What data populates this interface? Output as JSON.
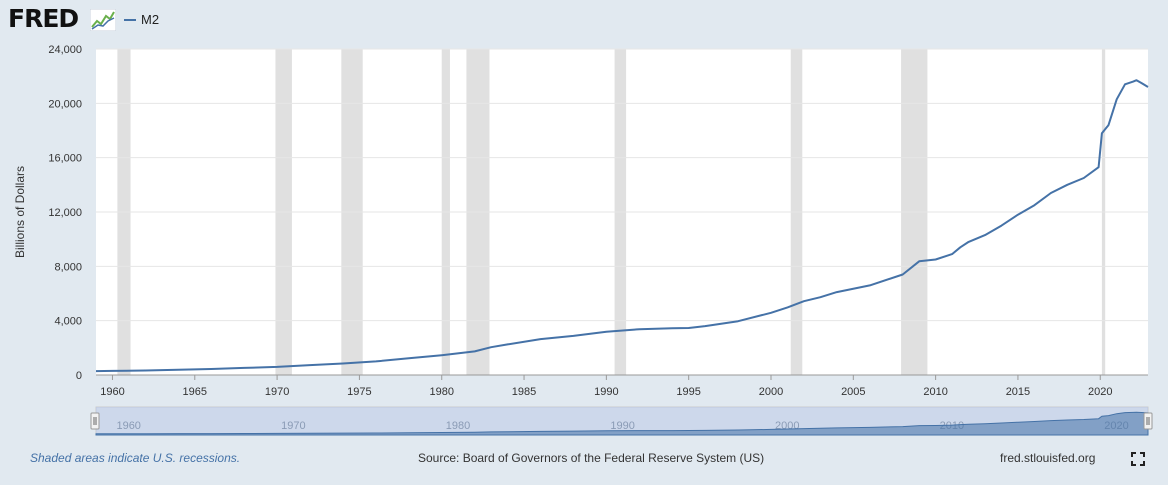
{
  "header": {
    "logo_text": "FRED",
    "logo_icon": "fred-line-graph-icon"
  },
  "legend": {
    "items": [
      {
        "label": "M2",
        "color": "#4572a7"
      }
    ]
  },
  "chart_data": {
    "type": "line",
    "title": "",
    "xlabel": "",
    "ylabel": "Billions of Dollars",
    "xlim": [
      1959.0,
      2022.9
    ],
    "ylim": [
      0,
      24000
    ],
    "yticks": [
      0,
      4000,
      8000,
      12000,
      16000,
      20000,
      24000
    ],
    "ytick_labels": [
      "0",
      "4,000",
      "8,000",
      "12,000",
      "16,000",
      "20,000",
      "24,000"
    ],
    "xticks": [
      1960,
      1965,
      1970,
      1975,
      1980,
      1985,
      1990,
      1995,
      2000,
      2005,
      2010,
      2015,
      2020
    ],
    "grid": true,
    "legend_placement": "top-left",
    "line_color": "#4572a7",
    "recession_color": "#e0e0e0",
    "recessions": [
      [
        1960.3,
        1961.1
      ],
      [
        1969.9,
        1970.9
      ],
      [
        1973.9,
        1975.2
      ],
      [
        1980.0,
        1980.5
      ],
      [
        1981.5,
        1982.9
      ],
      [
        1990.5,
        1991.2
      ],
      [
        2001.2,
        2001.9
      ],
      [
        2007.9,
        2009.5
      ],
      [
        2020.1,
        2020.3
      ]
    ],
    "series": [
      {
        "name": "M2",
        "x": [
          1959.0,
          1960,
          1962,
          1964,
          1966,
          1968,
          1970,
          1972,
          1974,
          1976,
          1978,
          1980,
          1982,
          1983,
          1984,
          1986,
          1988,
          1990,
          1992,
          1994,
          1995,
          1996,
          1998,
          2000,
          2001,
          2002,
          2003,
          2004,
          2006,
          2008,
          2009,
          2010,
          2011,
          2011.5,
          2012,
          2013,
          2014,
          2015,
          2016,
          2017,
          2018,
          2019,
          2019.9,
          2020.1,
          2020.5,
          2021,
          2021.5,
          2022.0,
          2022.2,
          2022.5,
          2022.9
        ],
        "values": [
          290,
          300,
          330,
          380,
          440,
          520,
          600,
          730,
          850,
          1000,
          1230,
          1460,
          1740,
          2050,
          2250,
          2640,
          2880,
          3190,
          3370,
          3440,
          3460,
          3600,
          3960,
          4580,
          4980,
          5430,
          5730,
          6100,
          6600,
          7400,
          8370,
          8500,
          8900,
          9400,
          9800,
          10300,
          11000,
          11800,
          12500,
          13400,
          14000,
          14500,
          15300,
          17800,
          18400,
          20300,
          21400,
          21600,
          21700,
          21500,
          21200
        ]
      }
    ]
  },
  "navigator": {
    "labels": [
      "1960",
      "1970",
      "1980",
      "1990",
      "2000",
      "2010",
      "2020"
    ],
    "label_years": [
      1960,
      1970,
      1980,
      1990,
      2000,
      2010,
      2020
    ]
  },
  "footer": {
    "recession_note": "Shaded areas indicate U.S. recessions.",
    "source": "Source: Board of Governors of the Federal Reserve System (US)",
    "url": "fred.stlouisfed.org",
    "fullscreen_icon": "fullscreen-icon"
  }
}
